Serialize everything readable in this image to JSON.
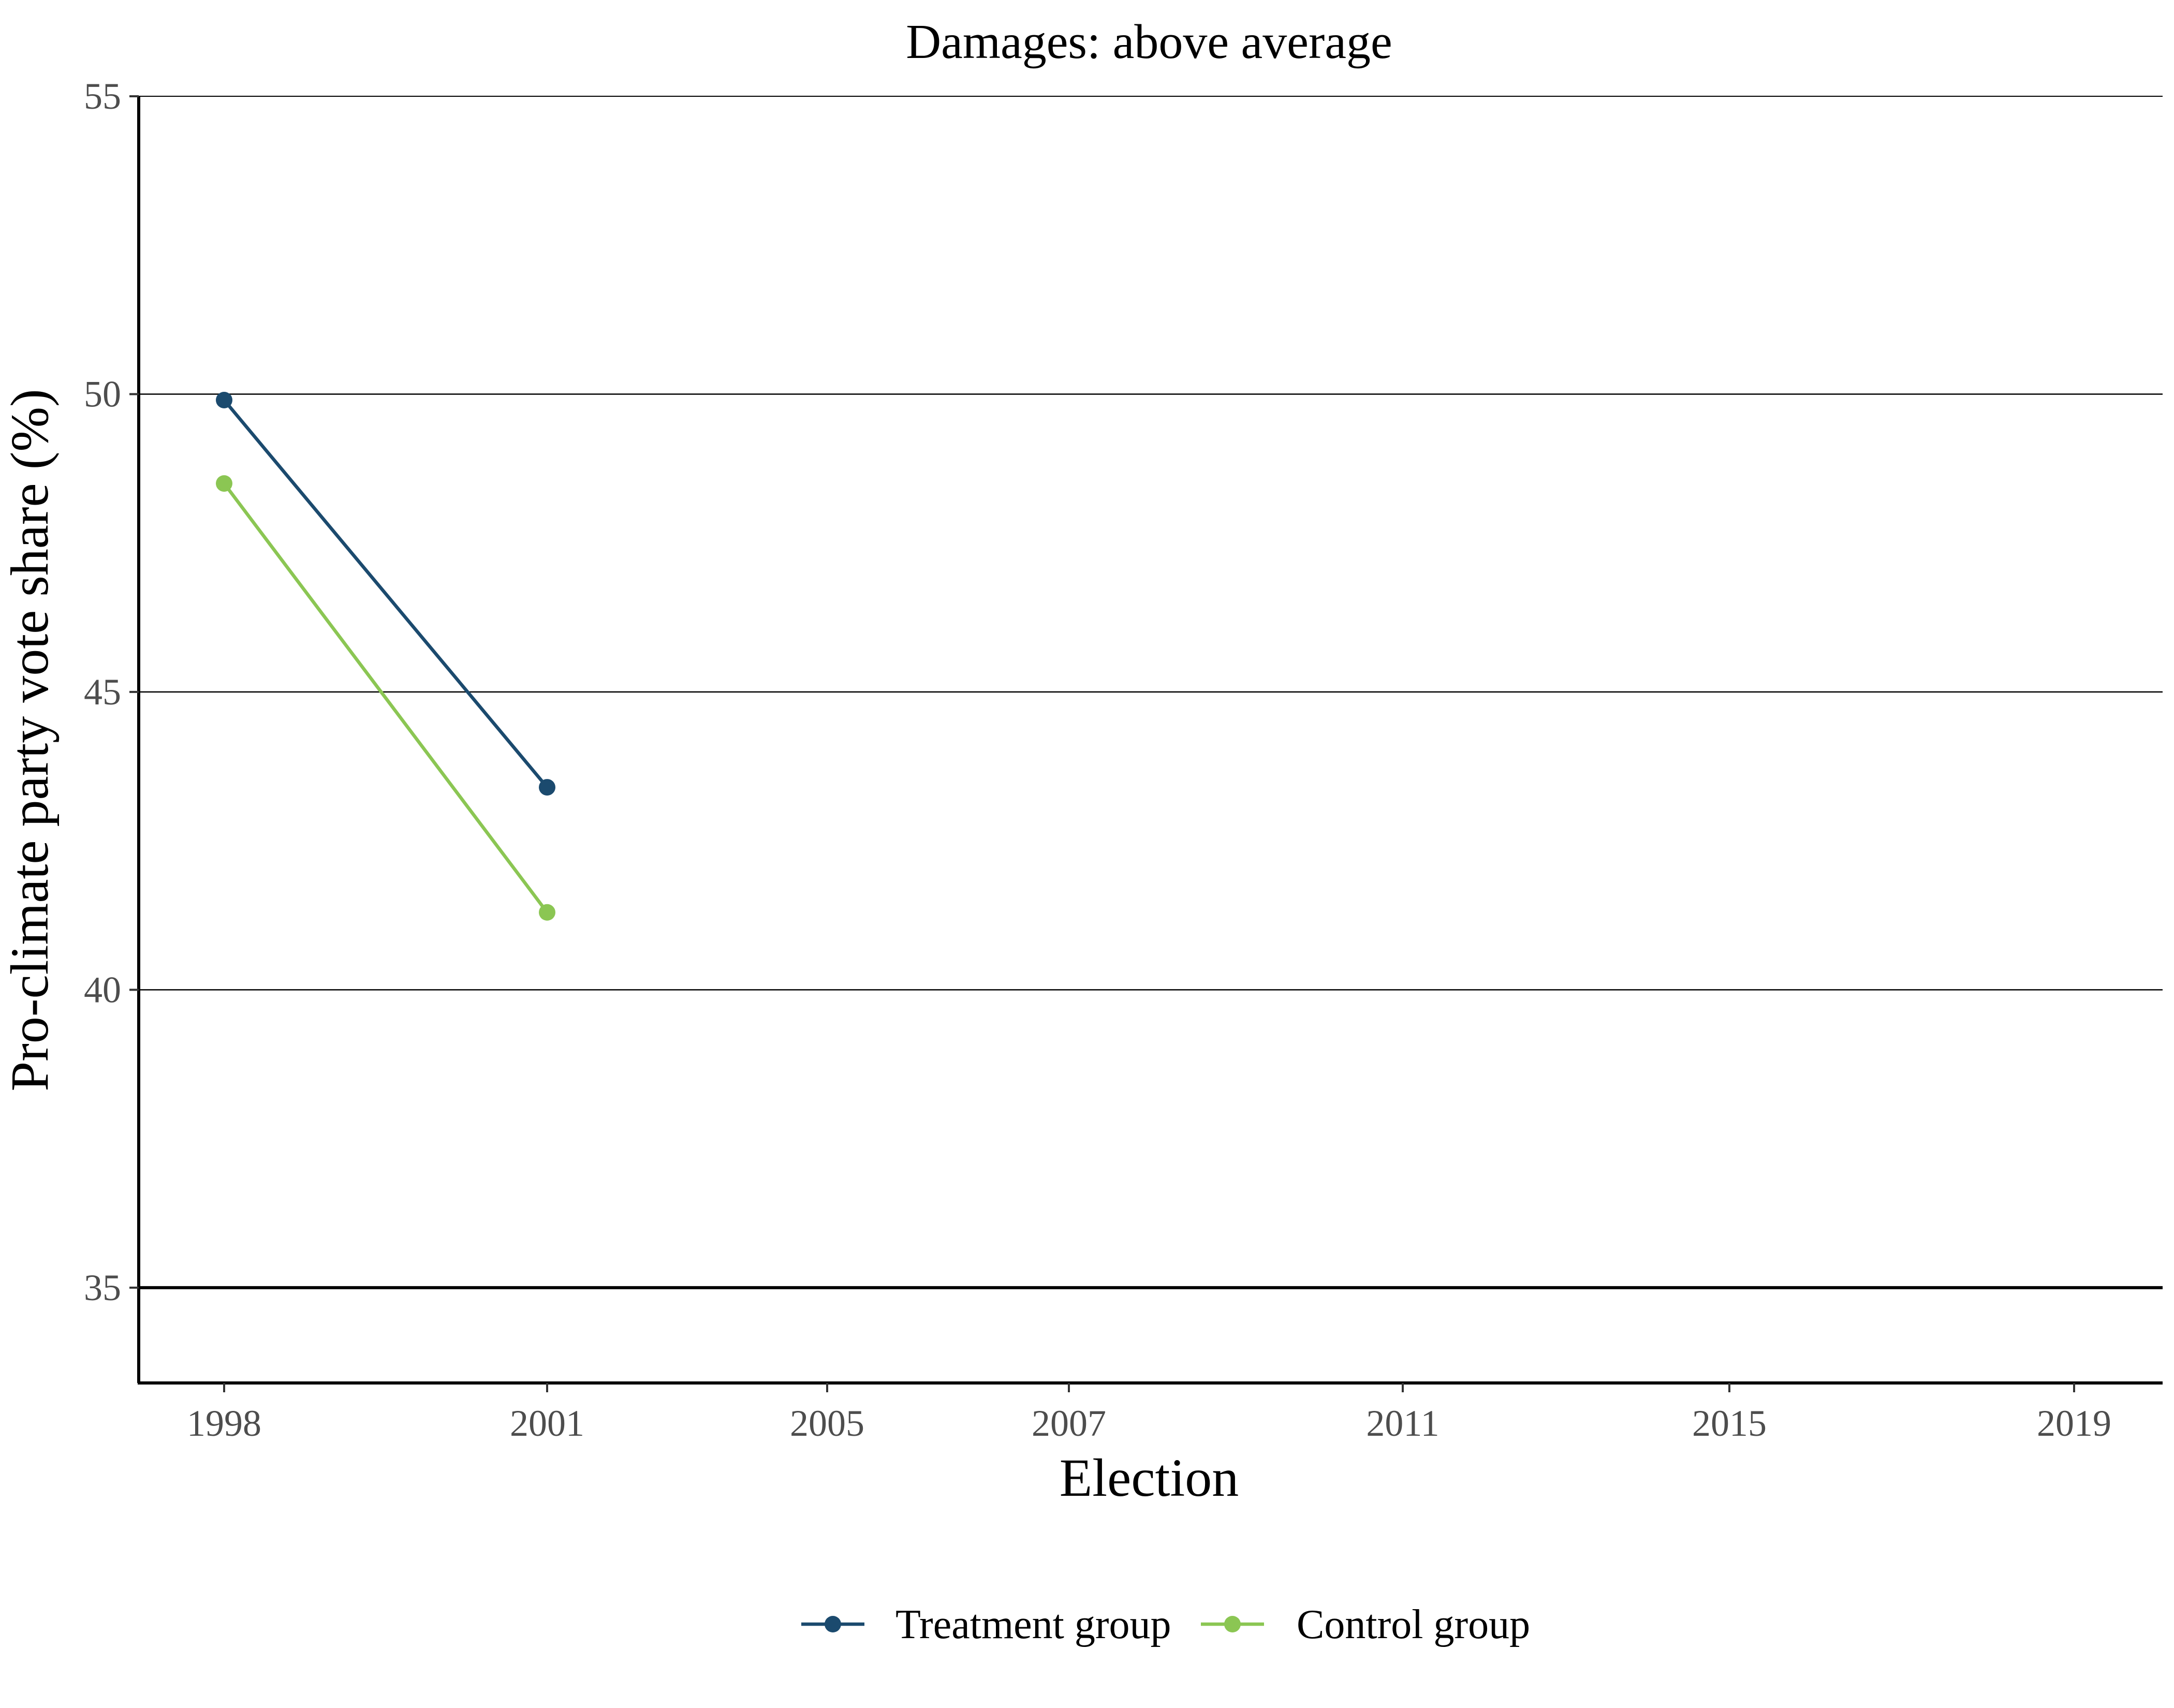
{
  "chart_data": {
    "type": "line",
    "title": "Damages: above average",
    "xlabel": "Election",
    "ylabel": "Pro-climate party vote share (%)",
    "categories": [
      "1998",
      "2001",
      "2005",
      "2007",
      "2011",
      "2015",
      "2019"
    ],
    "ylim": [
      33.4,
      55
    ],
    "yticks": [
      35,
      40,
      45,
      50,
      55
    ],
    "grid": "horizontal",
    "reference_line": 35,
    "legend_position": "bottom",
    "series": [
      {
        "name": "Treatment group",
        "color": "#1b4a6e",
        "values": [
          49.9,
          43.4,
          null,
          null,
          null,
          null,
          null
        ]
      },
      {
        "name": "Control group",
        "color": "#8bc653",
        "values": [
          48.5,
          41.3,
          null,
          null,
          null,
          null,
          null
        ]
      }
    ]
  }
}
